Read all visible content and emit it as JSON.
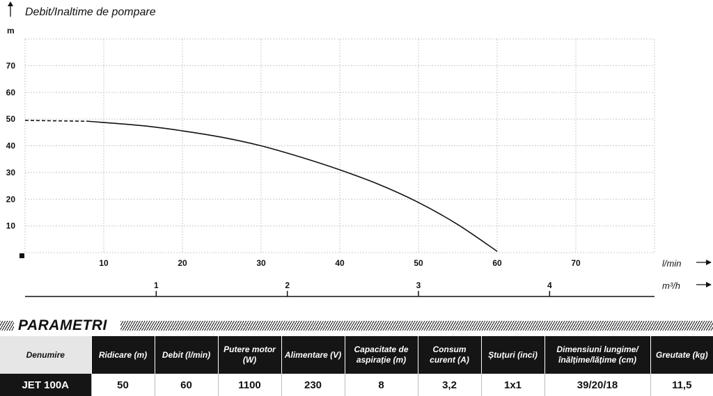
{
  "chart_data": {
    "type": "line",
    "title": "Debit/Inaltime de pompare",
    "ylabel": "m",
    "xlabel": "l/min",
    "secondary_xlabel": "m³/h",
    "xlim": [
      0,
      80
    ],
    "ylim": [
      0,
      80
    ],
    "x_ticks": [
      10,
      20,
      30,
      40,
      50,
      60,
      70
    ],
    "y_ticks": [
      10,
      20,
      30,
      40,
      50,
      60,
      70
    ],
    "secondary_ticks": [
      1,
      2,
      3,
      4
    ],
    "grid": true,
    "series": [
      {
        "dashed_segment": {
          "x": [
            0,
            8
          ],
          "y": [
            49.5,
            49.2
          ]
        },
        "x": [
          8,
          15,
          20,
          25,
          30,
          35,
          40,
          45,
          50,
          55,
          60
        ],
        "y": [
          49.2,
          47.5,
          45.6,
          43.2,
          40.0,
          35.8,
          31.0,
          25.5,
          18.8,
          10.5,
          0.5
        ]
      }
    ]
  },
  "parametri": {
    "title": "PARAMETRI",
    "headers": [
      "Denumire",
      "Ridicare (m)",
      "Debit (l/min)",
      "Putere motor (W)",
      "Alimentare (V)",
      "Capacitate de aspirație (m)",
      "Consum curent (A)",
      "Ștuțuri (inci)",
      "Dimensiuni lungime/ înălțime/lățime (cm)",
      "Greutate (kg)"
    ],
    "row": [
      "JET 100A",
      "50",
      "60",
      "1100",
      "230",
      "8",
      "3,2",
      "1x1",
      "39/20/18",
      "11,5"
    ]
  }
}
